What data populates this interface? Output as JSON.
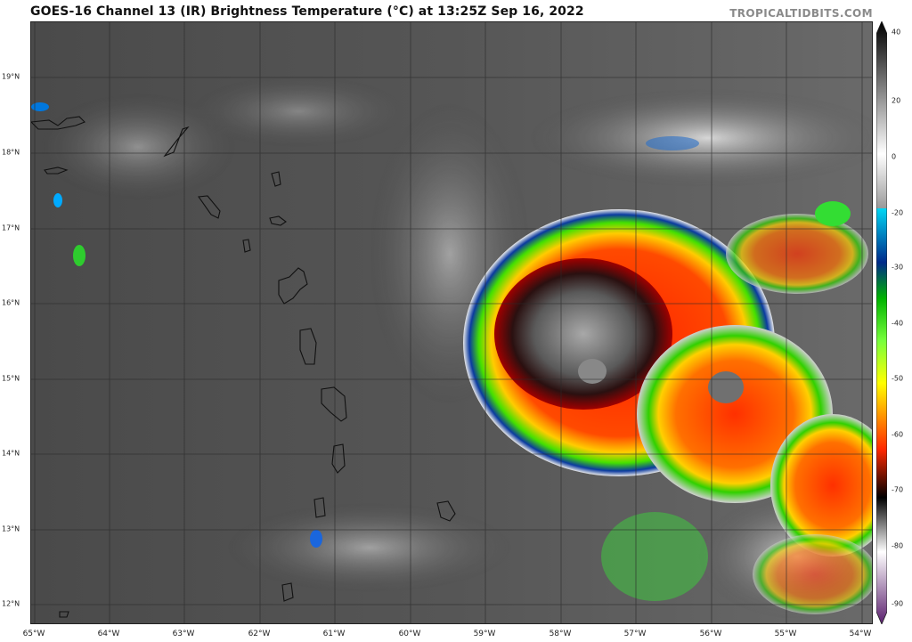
{
  "header": {
    "title": "GOES-16 Channel 13 (IR) Brightness Temperature (°C) at 13:25Z Sep 16, 2022",
    "credit": "TROPICALTIDBITS.COM"
  },
  "map": {
    "lat_labels": [
      "19°N",
      "18°N",
      "17°N",
      "16°N",
      "15°N",
      "14°N",
      "13°N",
      "12°N"
    ],
    "lon_labels": [
      "65°W",
      "64°W",
      "63°W",
      "62°W",
      "61°W",
      "60°W",
      "59°W",
      "58°W",
      "57°W",
      "56°W",
      "55°W",
      "54°W"
    ]
  },
  "colorbar": {
    "labels": [
      "40",
      "20",
      "0",
      "-20",
      "-30",
      "-40",
      "-50",
      "-60",
      "-70",
      "-80",
      "-90"
    ],
    "stops": [
      {
        "value": 40,
        "color": "#000000"
      },
      {
        "value": 0,
        "color": "#ffffff"
      },
      {
        "value": -20,
        "color": "#9a9a9a"
      },
      {
        "value": -20.1,
        "color": "#00d7f5"
      },
      {
        "value": -30,
        "color": "#002a8a"
      },
      {
        "value": -35,
        "color": "#00b400"
      },
      {
        "value": -45,
        "color": "#78ff3c"
      },
      {
        "value": -50,
        "color": "#ffff00"
      },
      {
        "value": -60,
        "color": "#ff2800"
      },
      {
        "value": -70,
        "color": "#000000"
      },
      {
        "value": -80,
        "color": "#ffffff"
      },
      {
        "value": -90,
        "color": "#5a1e6e"
      }
    ]
  }
}
